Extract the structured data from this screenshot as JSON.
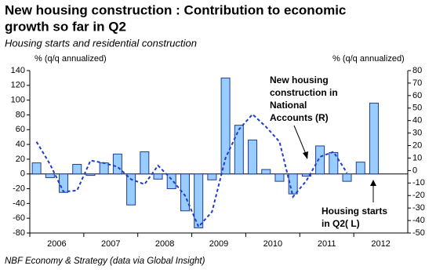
{
  "chart_data": {
    "type": "bar",
    "title": [
      "New housing construction : Contribution to economic",
      "growth so far in Q2"
    ],
    "subtitle": "Housing starts and residential construction",
    "ylabel": "% (q/q annualized)",
    "y2label": "% (q/q annualized)",
    "footer": "NBF Economy & Strategy (data via Global Insight)",
    "categories": [
      null,
      null,
      null,
      null,
      null,
      null,
      null,
      null,
      null,
      null,
      null,
      null,
      null,
      null,
      null,
      null,
      null,
      null,
      null,
      null,
      null,
      null,
      null,
      null,
      null,
      null
    ],
    "xtick_labels": [
      "2006",
      "2007",
      "2008",
      "2009",
      "2010",
      "2011",
      "2012"
    ],
    "series": [
      {
        "name": "Housing starts",
        "type": "bar",
        "color": "#99ccff",
        "edge": "#1f3d99",
        "values": [
          15,
          -5,
          -25,
          13,
          -2,
          15,
          27,
          -42,
          30,
          -7,
          -20,
          -50,
          -73,
          -8,
          130,
          66,
          46,
          6,
          -10,
          -27,
          -3,
          38,
          29,
          -10,
          16,
          96
        ]
      },
      {
        "name": "New housing construction in National Accounts",
        "type": "line",
        "axis": "y2",
        "color": "#1f3dcc",
        "values": [
          23,
          5,
          -17,
          -16,
          8,
          6,
          3,
          -7,
          -11,
          4,
          -7,
          -20,
          -45,
          -33,
          10,
          33,
          45,
          35,
          23,
          -21,
          -8,
          11,
          15,
          -2,
          null,
          null
        ]
      }
    ],
    "ylim": [
      -80,
      140
    ],
    "yticks": [
      -80,
      -60,
      -40,
      -20,
      0,
      20,
      40,
      60,
      80,
      100,
      120,
      140
    ],
    "y2lim": [
      -50,
      80
    ],
    "y2ticks": [
      -50,
      -40,
      -30,
      -20,
      -10,
      0,
      10,
      20,
      30,
      40,
      50,
      60,
      70,
      80
    ],
    "annotations": [
      {
        "text": [
          "New housing",
          "construction in",
          "National",
          "Accounts (R)"
        ]
      },
      {
        "text": [
          "Housing starts",
          "in Q2( L)"
        ]
      }
    ],
    "grid": false
  }
}
